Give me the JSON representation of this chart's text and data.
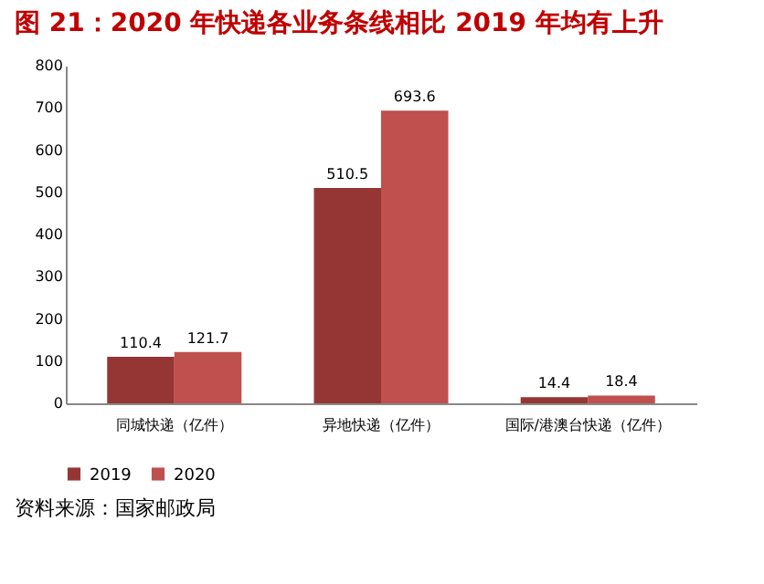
{
  "chart_data": {
    "type": "bar",
    "title": "图 21：2020 年快递各业务条线相比 2019 年均有上升",
    "categories": [
      "同城快递（亿件）",
      "异地快递（亿件）",
      "国际/港澳台快递（亿件）"
    ],
    "series": [
      {
        "name": "2019",
        "color": "#963634",
        "values": [
          110.4,
          510.5,
          14.4
        ]
      },
      {
        "name": "2020",
        "color": "#c0504d",
        "values": [
          121.7,
          693.6,
          18.4
        ]
      }
    ],
    "ylim": [
      0,
      800
    ],
    "yticks": [
      0,
      100,
      200,
      300,
      400,
      500,
      600,
      700,
      800
    ],
    "data_labels": true,
    "grid": false,
    "legend": "bottom",
    "annotations": [
      "资料来源：国家邮政局"
    ]
  }
}
